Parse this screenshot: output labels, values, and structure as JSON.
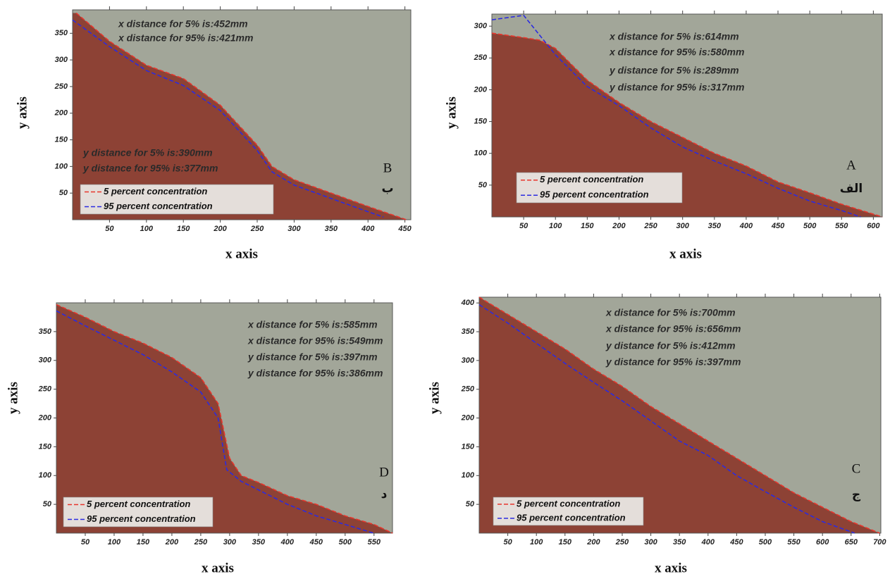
{
  "chart_data": [
    {
      "type": "line",
      "x_label": "x axis",
      "y_label": "y axis",
      "annotations": [
        "x distance for 5% is:452mm",
        "x distance for 95% is:421mm",
        "y distance for 5% is:390mm",
        "y distance for 95% is:377mm"
      ],
      "panel_labels": [
        "B",
        "ب"
      ],
      "xlim": [
        0,
        458
      ],
      "ylim": [
        0,
        394
      ],
      "xticks": [
        50,
        100,
        150,
        200,
        250,
        300,
        350,
        400,
        450
      ],
      "yticks": [
        50,
        100,
        150,
        200,
        250,
        300,
        350
      ],
      "legend": "lower left",
      "dashed": true,
      "series": [
        {
          "name": "5 percent concentration",
          "color": "#e8352c",
          "x": [
            5,
            50,
            100,
            150,
            200,
            250,
            270,
            300,
            350,
            400,
            452
          ],
          "values": [
            388,
            335,
            290,
            265,
            215,
            140,
            100,
            75,
            50,
            25,
            0
          ]
        },
        {
          "name": "95 percent concentration",
          "color": "#2b2be0",
          "x": [
            0,
            50,
            100,
            150,
            200,
            250,
            270,
            300,
            350,
            400,
            421
          ],
          "values": [
            375,
            325,
            280,
            252,
            205,
            130,
            90,
            65,
            40,
            15,
            5
          ]
        }
      ]
    },
    {
      "type": "line",
      "x_label": "x axis",
      "y_label": "y axis",
      "annotations": [
        "x distance for 5% is:614mm",
        "x distance for 95% is:580mm",
        "y distance for 5% is:289mm",
        "y distance for 95% is:317mm"
      ],
      "panel_labels": [
        "A",
        "الف"
      ],
      "xlim": [
        0,
        614
      ],
      "ylim": [
        0,
        319
      ],
      "xticks": [
        50,
        100,
        150,
        200,
        250,
        300,
        350,
        400,
        450,
        500,
        550,
        600
      ],
      "yticks": [
        50,
        100,
        150,
        200,
        250,
        300
      ],
      "legend": "lower left",
      "dashed": true,
      "series": [
        {
          "name": "5 percent concentration",
          "color": "#e8352c",
          "x": [
            0,
            50,
            75,
            100,
            150,
            200,
            250,
            300,
            350,
            400,
            450,
            500,
            550,
            614
          ],
          "values": [
            289,
            282,
            278,
            265,
            215,
            180,
            150,
            125,
            100,
            80,
            55,
            38,
            20,
            0
          ]
        },
        {
          "name": "95 percent concentration",
          "color": "#2b2be0",
          "x": [
            0,
            50,
            100,
            150,
            200,
            250,
            300,
            350,
            400,
            450,
            500,
            550,
            580
          ],
          "values": [
            310,
            317,
            255,
            205,
            175,
            140,
            110,
            88,
            68,
            45,
            25,
            10,
            0
          ]
        }
      ]
    },
    {
      "type": "line",
      "x_label": "x axis",
      "y_label": "y axis",
      "annotations": [
        "x distance for 5% is:585mm",
        "x distance for 95% is:549mm",
        "y distance for 5% is:397mm",
        "y distance for 95% is:386mm"
      ],
      "panel_labels": [
        "D",
        "د"
      ],
      "xlim": [
        0,
        582
      ],
      "ylim": [
        0,
        400
      ],
      "xticks": [
        50,
        100,
        150,
        200,
        250,
        300,
        350,
        400,
        450,
        500,
        550
      ],
      "yticks": [
        50,
        100,
        150,
        200,
        250,
        300,
        350
      ],
      "legend": "lower left",
      "dashed": true,
      "series": [
        {
          "name": "5 percent concentration",
          "color": "#e8352c",
          "x": [
            0,
            50,
            100,
            150,
            200,
            250,
            280,
            300,
            320,
            350,
            400,
            450,
            500,
            550,
            582
          ],
          "values": [
            397,
            375,
            350,
            330,
            305,
            270,
            225,
            130,
            100,
            88,
            65,
            50,
            30,
            15,
            0
          ]
        },
        {
          "name": "95 percent concentration",
          "color": "#2b2be0",
          "x": [
            0,
            50,
            100,
            150,
            200,
            250,
            280,
            295,
            320,
            350,
            400,
            450,
            500,
            549
          ],
          "values": [
            386,
            360,
            335,
            310,
            280,
            245,
            200,
            110,
            90,
            75,
            50,
            30,
            15,
            0
          ]
        }
      ]
    },
    {
      "type": "line",
      "x_label": "x axis",
      "y_label": "y axis",
      "annotations": [
        "x distance for 5% is:700mm",
        "x distance for 95% is:656mm",
        "y distance for 5% is:412mm",
        "y distance for 95% is:397mm"
      ],
      "panel_labels": [
        "C",
        "ج"
      ],
      "xlim": [
        0,
        702
      ],
      "ylim": [
        0,
        410
      ],
      "xticks": [
        50,
        100,
        150,
        200,
        250,
        300,
        350,
        400,
        450,
        500,
        550,
        600,
        650,
        700
      ],
      "yticks": [
        50,
        100,
        150,
        200,
        250,
        300,
        350,
        400
      ],
      "legend": "lower left",
      "dashed": true,
      "series": [
        {
          "name": "5 percent concentration",
          "color": "#e8352c",
          "x": [
            0,
            50,
            100,
            150,
            200,
            250,
            300,
            350,
            400,
            450,
            500,
            550,
            600,
            650,
            700
          ],
          "values": [
            410,
            380,
            350,
            320,
            285,
            255,
            220,
            190,
            160,
            130,
            100,
            70,
            45,
            20,
            0
          ]
        },
        {
          "name": "95 percent concentration",
          "color": "#2b2be0",
          "x": [
            0,
            50,
            100,
            150,
            200,
            250,
            300,
            350,
            400,
            450,
            500,
            550,
            600,
            656
          ],
          "values": [
            397,
            365,
            330,
            295,
            262,
            230,
            195,
            160,
            135,
            100,
            72,
            45,
            20,
            0
          ]
        }
      ]
    }
  ]
}
